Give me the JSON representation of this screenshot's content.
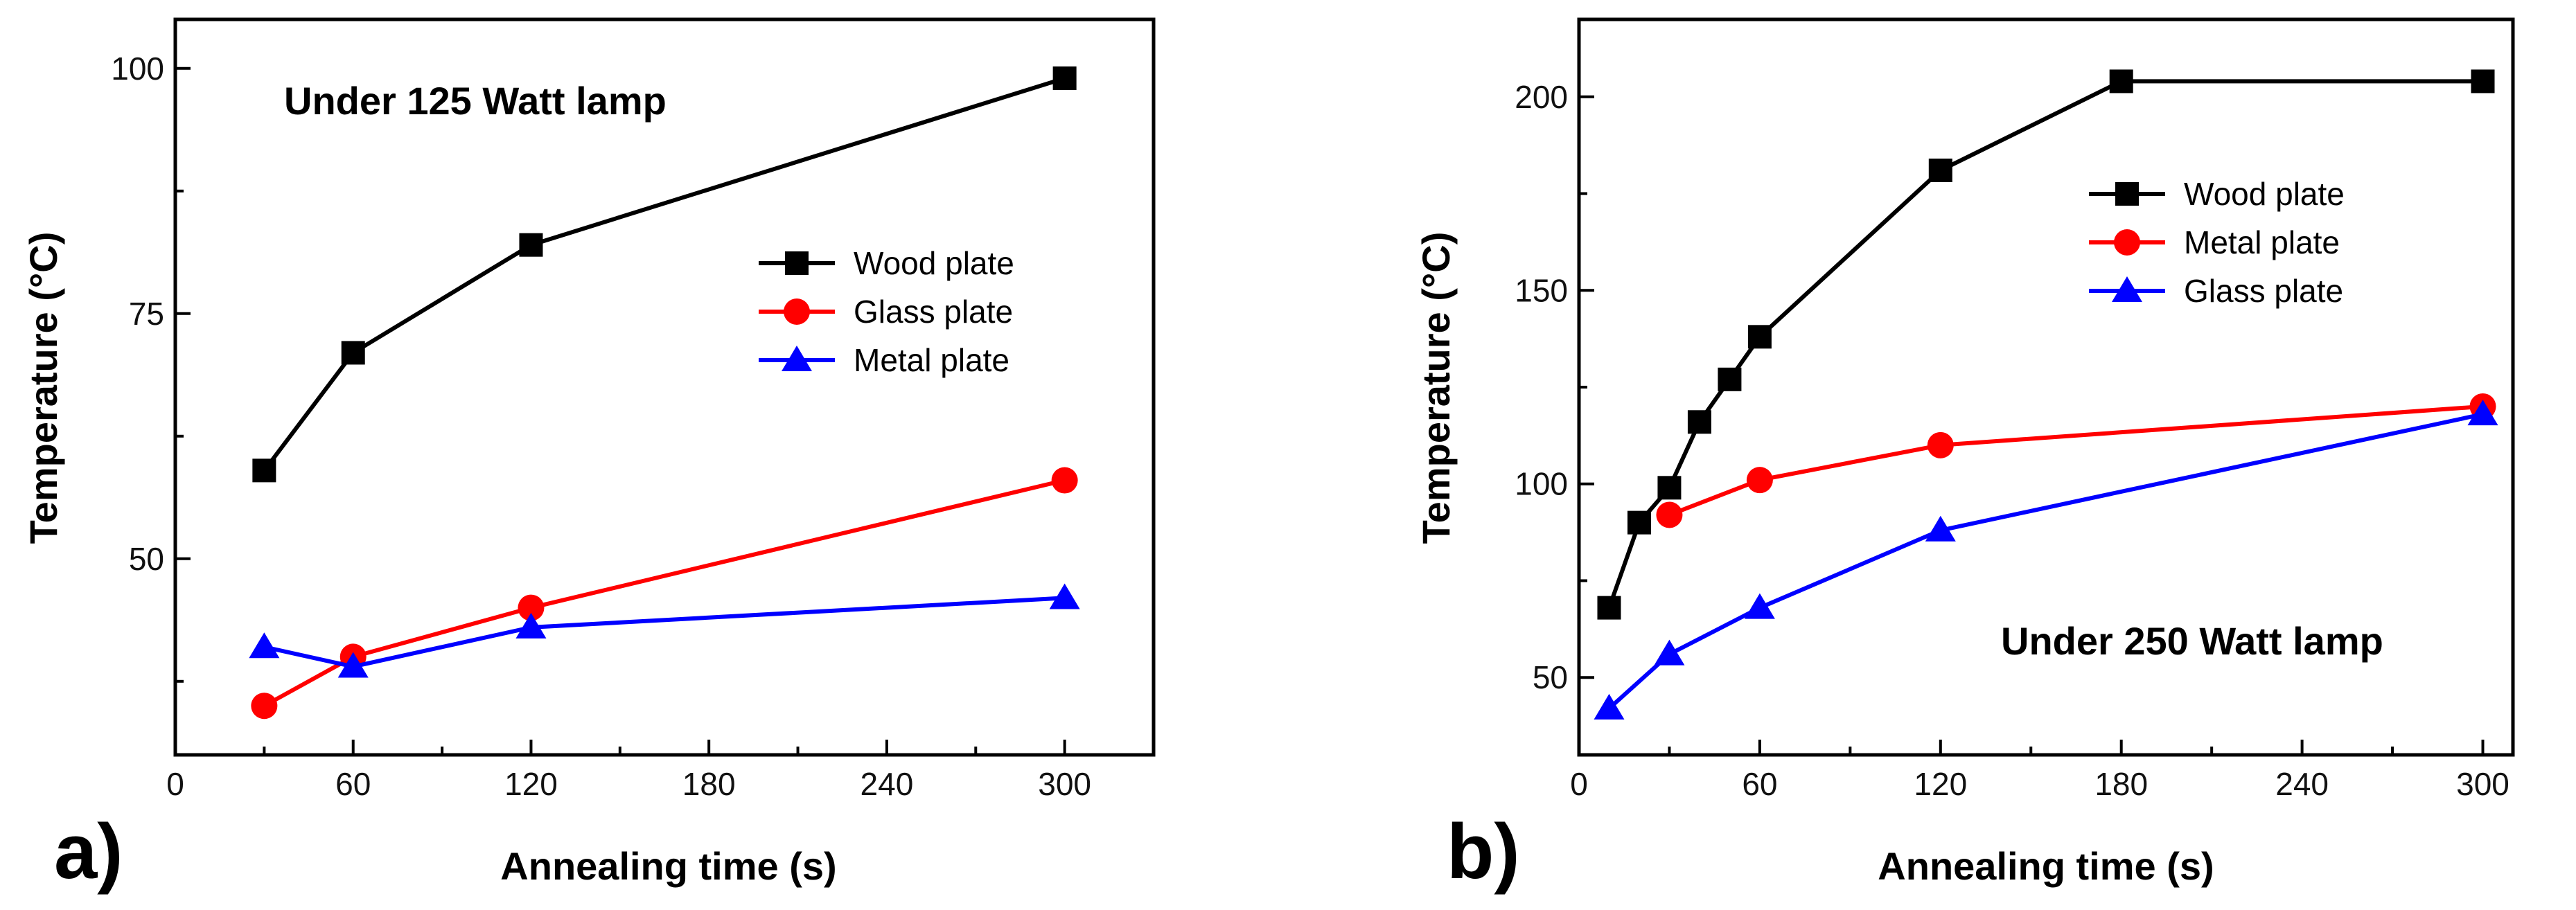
{
  "chart_data": [
    {
      "type": "line",
      "panel_label": "a)",
      "annotation": "Under 125 Watt lamp",
      "xlabel": "Annealing time (s)",
      "ylabel": "Temperature (°C)",
      "xlim": [
        0,
        330
      ],
      "ylim": [
        30,
        105
      ],
      "xticks": [
        0,
        60,
        120,
        180,
        240,
        300
      ],
      "yticks": [
        50,
        75,
        100
      ],
      "legend_position": "right-middle",
      "series": [
        {
          "name": "Wood plate",
          "color": "#000000",
          "marker": "square",
          "x": [
            30,
            60,
            120,
            300
          ],
          "y": [
            59,
            71,
            82,
            99
          ]
        },
        {
          "name": "Glass plate",
          "color": "#ff0000",
          "marker": "circle",
          "x": [
            30,
            60,
            120,
            300
          ],
          "y": [
            35,
            40,
            45,
            58
          ]
        },
        {
          "name": "Metal plate",
          "color": "#0000ff",
          "marker": "triangle",
          "x": [
            30,
            60,
            120,
            300
          ],
          "y": [
            41,
            39,
            43,
            46
          ]
        }
      ]
    },
    {
      "type": "line",
      "panel_label": "b)",
      "annotation": "Under 250 Watt lamp",
      "xlabel": "Annealing time (s)",
      "ylabel": "Temperature (°C)",
      "xlim": [
        0,
        310
      ],
      "ylim": [
        30,
        220
      ],
      "xticks": [
        0,
        60,
        120,
        180,
        240,
        300
      ],
      "yticks": [
        50,
        100,
        150,
        200
      ],
      "legend_position": "top-right",
      "series": [
        {
          "name": "Wood plate",
          "color": "#000000",
          "marker": "square",
          "x": [
            10,
            20,
            30,
            40,
            50,
            60,
            120,
            180,
            300
          ],
          "y": [
            68,
            90,
            99,
            116,
            127,
            138,
            181,
            204,
            204
          ]
        },
        {
          "name": "Metal plate",
          "color": "#ff0000",
          "marker": "circle",
          "x": [
            30,
            60,
            120,
            300
          ],
          "y": [
            92,
            101,
            110,
            120
          ]
        },
        {
          "name": "Glass plate",
          "color": "#0000ff",
          "marker": "triangle",
          "x": [
            10,
            30,
            60,
            120,
            300
          ],
          "y": [
            42,
            56,
            68,
            88,
            118
          ]
        }
      ]
    }
  ]
}
